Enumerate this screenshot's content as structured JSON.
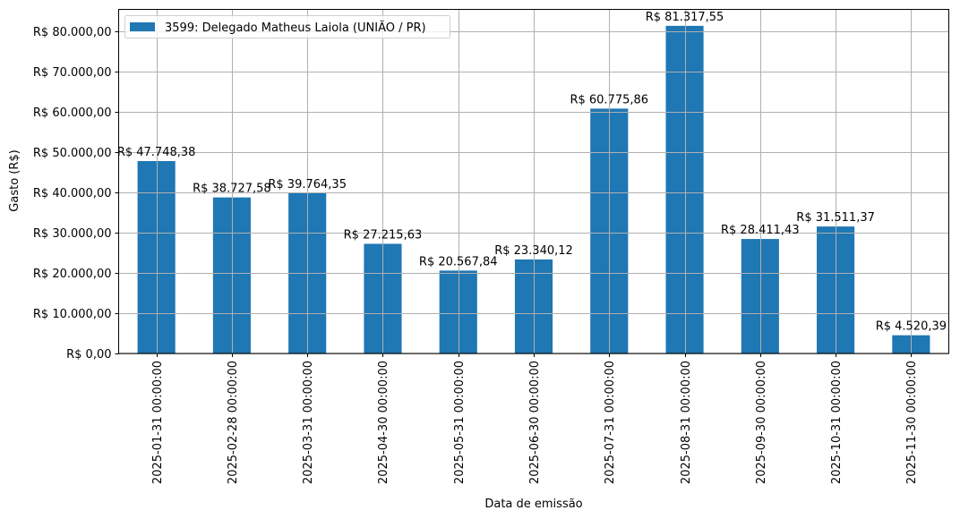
{
  "chart_data": {
    "type": "bar",
    "title": "",
    "xlabel": "Data de emissão",
    "ylabel": "Gasto (R$)",
    "ylim": [
      0,
      85400
    ],
    "grid": true,
    "legend_position": "upper left",
    "categories": [
      "2025-01-31 00:00:00",
      "2025-02-28 00:00:00",
      "2025-03-31 00:00:00",
      "2025-04-30 00:00:00",
      "2025-05-31 00:00:00",
      "2025-06-30 00:00:00",
      "2025-07-31 00:00:00",
      "2025-08-31 00:00:00",
      "2025-09-30 00:00:00",
      "2025-10-31 00:00:00",
      "2025-11-30 00:00:00"
    ],
    "series": [
      {
        "name": "3599: Delegado Matheus Laiola (UNIÃO / PR)",
        "color": "#1f77b4",
        "values": [
          47748.38,
          38727.58,
          39764.35,
          27215.63,
          20567.84,
          23340.12,
          60775.86,
          81317.55,
          28411.43,
          31511.37,
          4520.39
        ],
        "labels": [
          "R$ 47.748,38",
          "R$ 38.727,58",
          "R$ 39.764,35",
          "R$ 27.215,63",
          "R$ 20.567,84",
          "R$ 23.340,12",
          "R$ 60.775,86",
          "R$ 81.317,55",
          "R$ 28.411,43",
          "R$ 31.511,37",
          "R$ 4.520,39"
        ]
      }
    ],
    "yticks": [
      {
        "value": 0,
        "label": "R$ 0,00"
      },
      {
        "value": 10000,
        "label": "R$ 10.000,00"
      },
      {
        "value": 20000,
        "label": "R$ 20.000,00"
      },
      {
        "value": 30000,
        "label": "R$ 30.000,00"
      },
      {
        "value": 40000,
        "label": "R$ 40.000,00"
      },
      {
        "value": 50000,
        "label": "R$ 50.000,00"
      },
      {
        "value": 60000,
        "label": "R$ 60.000,00"
      },
      {
        "value": 70000,
        "label": "R$ 70.000,00"
      },
      {
        "value": 80000,
        "label": "R$ 80.000,00"
      }
    ]
  },
  "colors": {
    "bar": "#1f77b4",
    "grid": "#b0b0b0",
    "axis": "#000000"
  }
}
